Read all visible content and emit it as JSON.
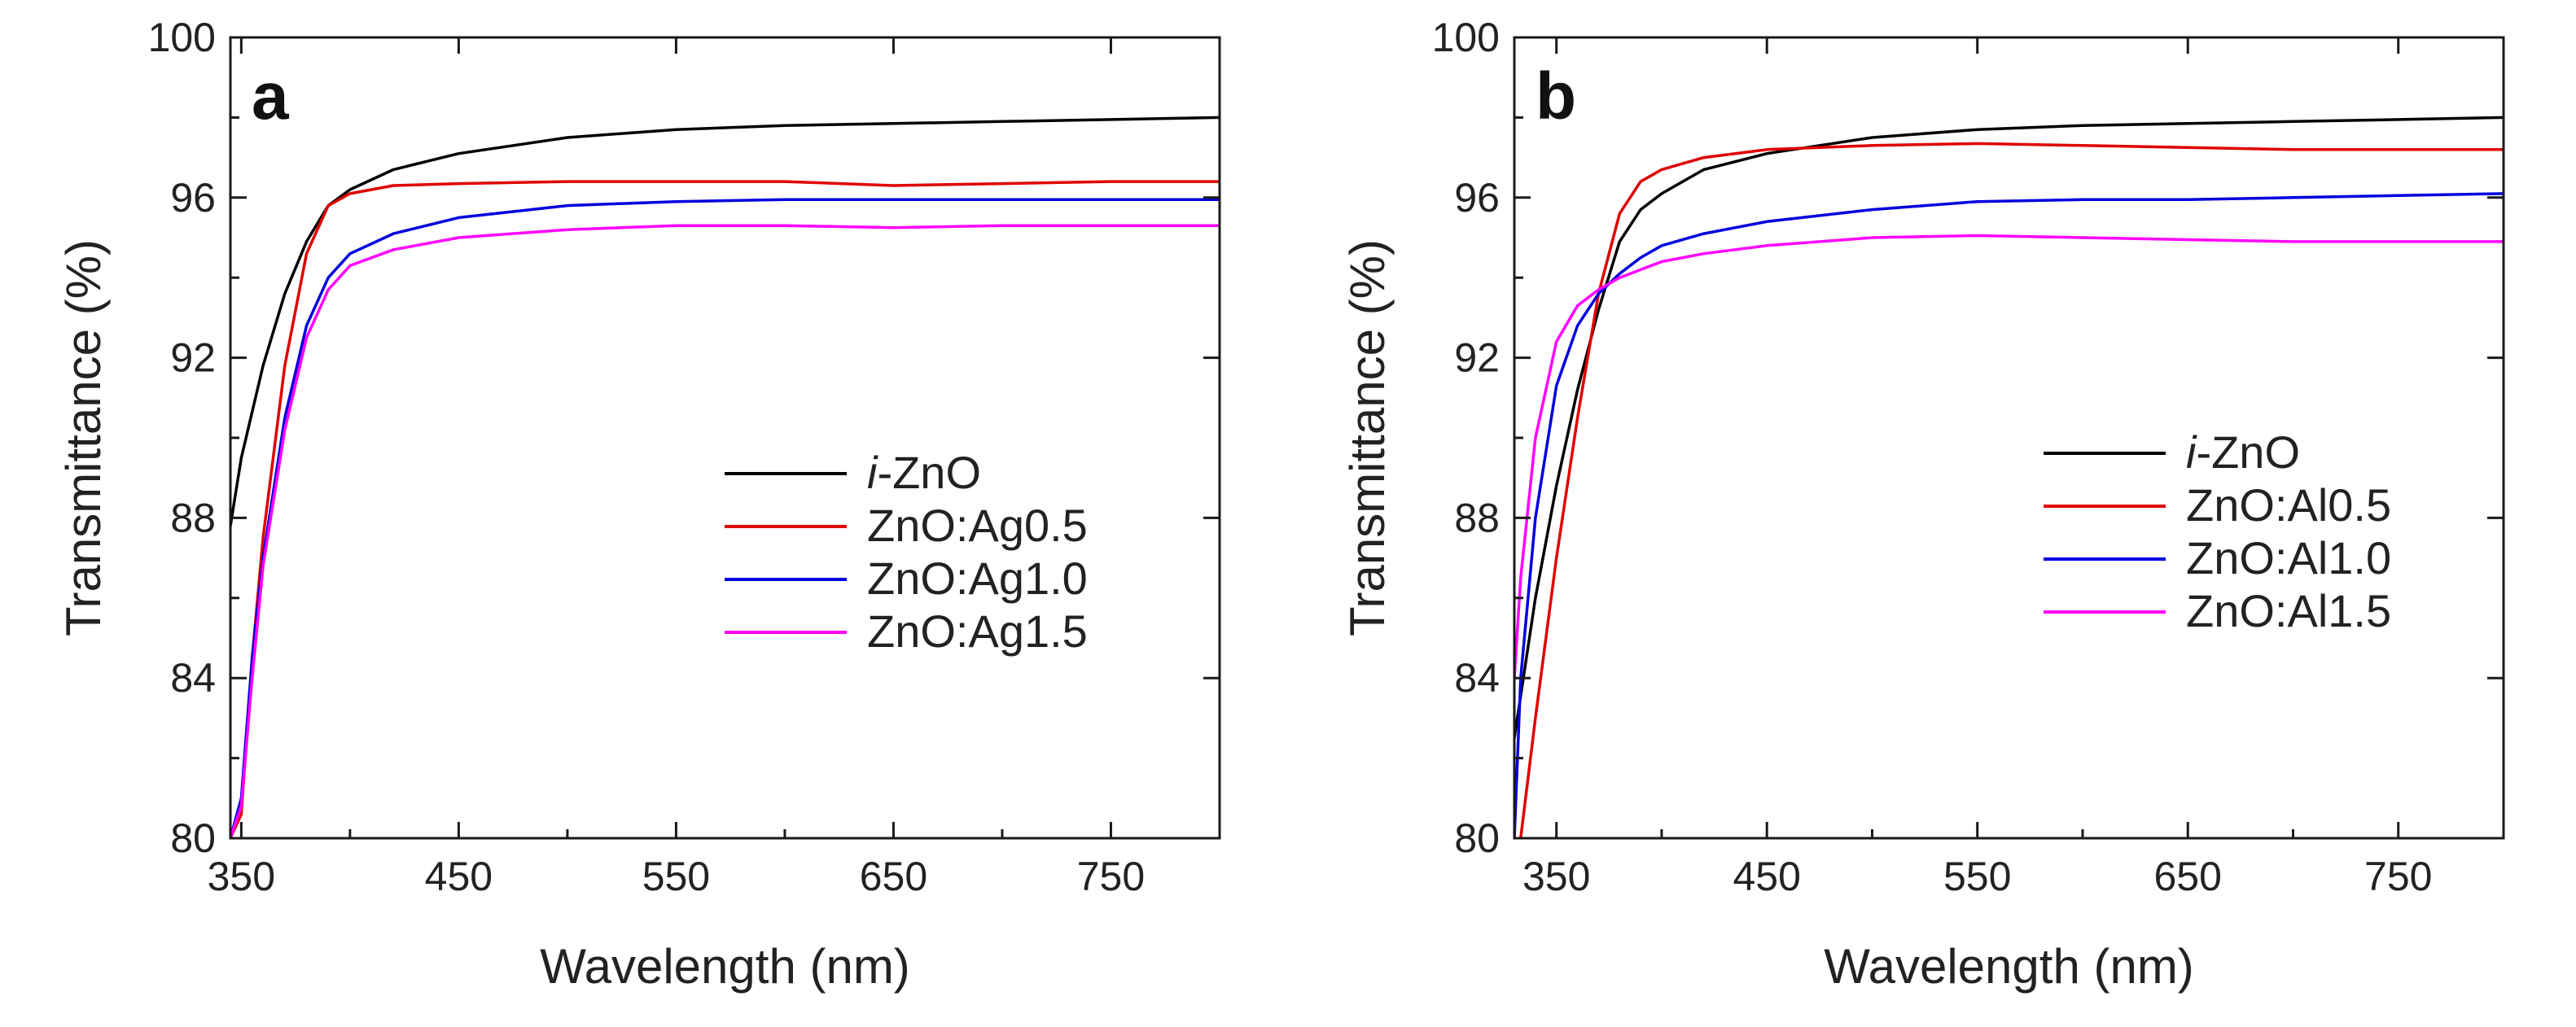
{
  "chart_data": [
    {
      "type": "line",
      "panel_label": "a",
      "xlabel": "Wavelength (nm)",
      "ylabel": "Transmittance (%)",
      "xlim": [
        345,
        800
      ],
      "ylim": [
        80,
        100
      ],
      "xticks": [
        350,
        450,
        550,
        650,
        750
      ],
      "yticks": [
        80,
        84,
        88,
        92,
        96,
        100
      ],
      "legend_position": "lower-right",
      "series": [
        {
          "name": "i-ZnO",
          "name_prefix": "i",
          "name_suffix": "-ZnO",
          "color": "#000000",
          "x": [
            345,
            350,
            360,
            370,
            380,
            390,
            400,
            420,
            450,
            500,
            550,
            600,
            650,
            700,
            750,
            800
          ],
          "y": [
            87.8,
            89.5,
            91.8,
            93.6,
            94.9,
            95.8,
            96.2,
            96.7,
            97.1,
            97.5,
            97.7,
            97.8,
            97.85,
            97.9,
            97.95,
            98.0
          ]
        },
        {
          "name": "ZnO:Ag0.5",
          "color": "#e00000",
          "x": [
            345,
            350,
            355,
            360,
            370,
            380,
            390,
            400,
            420,
            450,
            500,
            550,
            600,
            650,
            700,
            750,
            800
          ],
          "y": [
            80.0,
            80.6,
            84.5,
            87.5,
            91.8,
            94.6,
            95.8,
            96.1,
            96.3,
            96.35,
            96.4,
            96.4,
            96.4,
            96.3,
            96.35,
            96.4,
            96.4
          ]
        },
        {
          "name": "ZnO:Ag1.0",
          "color": "#0000e0",
          "x": [
            345,
            350,
            355,
            360,
            370,
            380,
            390,
            400,
            420,
            450,
            500,
            550,
            600,
            650,
            700,
            750,
            800
          ],
          "y": [
            80.0,
            81.0,
            84.5,
            87.0,
            90.5,
            92.8,
            94.0,
            94.6,
            95.1,
            95.5,
            95.8,
            95.9,
            95.95,
            95.95,
            95.95,
            95.95,
            95.95
          ]
        },
        {
          "name": "ZnO:Ag1.5",
          "color": "#ff00ff",
          "x": [
            345,
            350,
            355,
            360,
            370,
            380,
            390,
            400,
            420,
            450,
            500,
            550,
            600,
            650,
            700,
            750,
            800
          ],
          "y": [
            80.0,
            80.8,
            84.0,
            86.8,
            90.2,
            92.5,
            93.7,
            94.3,
            94.7,
            95.0,
            95.2,
            95.3,
            95.3,
            95.25,
            95.3,
            95.3,
            95.3
          ]
        }
      ]
    },
    {
      "type": "line",
      "panel_label": "b",
      "xlabel": "Wavelength (nm)",
      "ylabel": "Transmittance (%)",
      "xlim": [
        330,
        800
      ],
      "ylim": [
        80,
        100
      ],
      "xticks": [
        350,
        450,
        550,
        650,
        750
      ],
      "yticks": [
        80,
        84,
        88,
        92,
        96,
        100
      ],
      "legend_position": "lower-right",
      "series": [
        {
          "name": "i-ZnO",
          "name_prefix": "i",
          "name_suffix": "-ZnO",
          "color": "#000000",
          "x": [
            330,
            340,
            350,
            360,
            370,
            380,
            390,
            400,
            420,
            450,
            500,
            550,
            600,
            650,
            700,
            750,
            800
          ],
          "y": [
            82.5,
            86.0,
            88.8,
            91.2,
            93.2,
            94.9,
            95.7,
            96.1,
            96.7,
            97.1,
            97.5,
            97.7,
            97.8,
            97.85,
            97.9,
            97.95,
            98.0
          ]
        },
        {
          "name": "ZnO:Al0.5",
          "color": "#e00000",
          "x": [
            333,
            340,
            350,
            360,
            370,
            380,
            390,
            400,
            420,
            450,
            500,
            550,
            600,
            650,
            700,
            750,
            800
          ],
          "y": [
            80.0,
            83.0,
            87.0,
            90.5,
            93.6,
            95.6,
            96.4,
            96.7,
            97.0,
            97.2,
            97.3,
            97.35,
            97.3,
            97.25,
            97.2,
            97.2,
            97.2
          ]
        },
        {
          "name": "ZnO:Al1.0",
          "color": "#0000e0",
          "x": [
            330,
            333,
            340,
            350,
            360,
            370,
            380,
            390,
            400,
            420,
            450,
            500,
            550,
            600,
            650,
            700,
            750,
            800
          ],
          "y": [
            80.0,
            84.0,
            88.0,
            91.3,
            92.8,
            93.6,
            94.1,
            94.5,
            94.8,
            95.1,
            95.4,
            95.7,
            95.9,
            95.95,
            95.95,
            96.0,
            96.05,
            96.1
          ]
        },
        {
          "name": "ZnO:Al1.5",
          "color": "#ff00ff",
          "x": [
            330,
            333,
            340,
            350,
            360,
            370,
            380,
            390,
            400,
            420,
            450,
            500,
            550,
            600,
            650,
            700,
            750,
            800
          ],
          "y": [
            84.0,
            86.5,
            90.0,
            92.4,
            93.3,
            93.7,
            94.0,
            94.2,
            94.4,
            94.6,
            94.8,
            95.0,
            95.05,
            95.0,
            94.95,
            94.9,
            94.9,
            94.9
          ]
        }
      ]
    }
  ]
}
